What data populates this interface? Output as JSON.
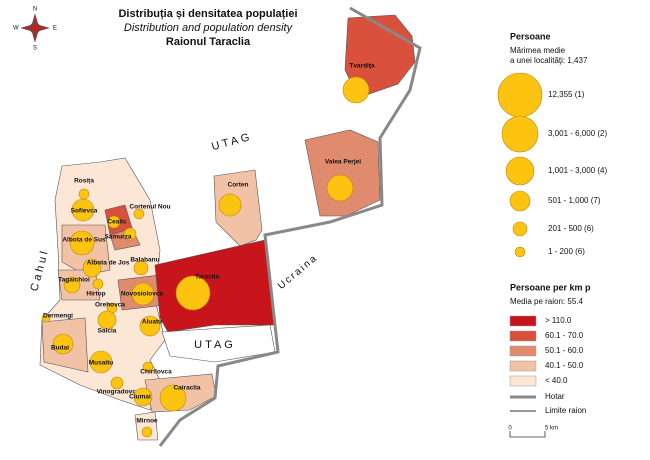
{
  "title": {
    "ro": "Distribuția și densitatea populației",
    "en": "Distribution and population density",
    "district": "Raionul Taraclia"
  },
  "compass": {
    "n": "N",
    "e": "E",
    "s": "S",
    "w": "W"
  },
  "regions": {
    "utag_north": "UTAG",
    "utag_south": "UTAG",
    "ukraine": "Ucraina",
    "cahul": "Cahul"
  },
  "localities": [
    "Tvardiţa",
    "Valea Perjei",
    "Corten",
    "Taraclia",
    "Rosița",
    "Sofievca",
    "Albota de Sus",
    "Albota de Jos",
    "Cealic",
    "Cortenul Nou",
    "Samurza",
    "Balabanu",
    "Tagaichioi",
    "Hirtop",
    "Novosiolovca",
    "Orehovca",
    "Dermengi",
    "Aluatu",
    "Salcia",
    "Budai",
    "Musaitu",
    "Chirilovca",
    "Vinogradovca",
    "Ciumai",
    "Cairaclia",
    "Mirnoe"
  ],
  "legend_size": {
    "title": "Persoane",
    "subtitle_lines": [
      "Mărimea medie",
      "a unei localităţi: 1,437"
    ],
    "items": [
      "12,355 (1)",
      "3,001 - 6,000 (2)",
      "1,001 - 3,000 (4)",
      "501 - 1,000 (7)",
      "201 - 500 (6)",
      "1 - 200 (6)"
    ]
  },
  "legend_density": {
    "title": "Persoane per km p",
    "subtitle": "Media pe raion: 55.4",
    "items": [
      {
        "label": "> 110.0",
        "color": "#c8151b"
      },
      {
        "label": "60.1 - 70.0",
        "color": "#d9503c"
      },
      {
        "label": "50.1 - 60.0",
        "color": "#e08a6e"
      },
      {
        "label": "40.1 - 50.0",
        "color": "#f2c2a6"
      },
      {
        "label": "< 40.0",
        "color": "#fce6d6"
      }
    ]
  },
  "legend_lines": {
    "border": "Hotar",
    "district_limit": "Limite raion"
  },
  "scale": {
    "start": "0",
    "end": "5 km"
  }
}
